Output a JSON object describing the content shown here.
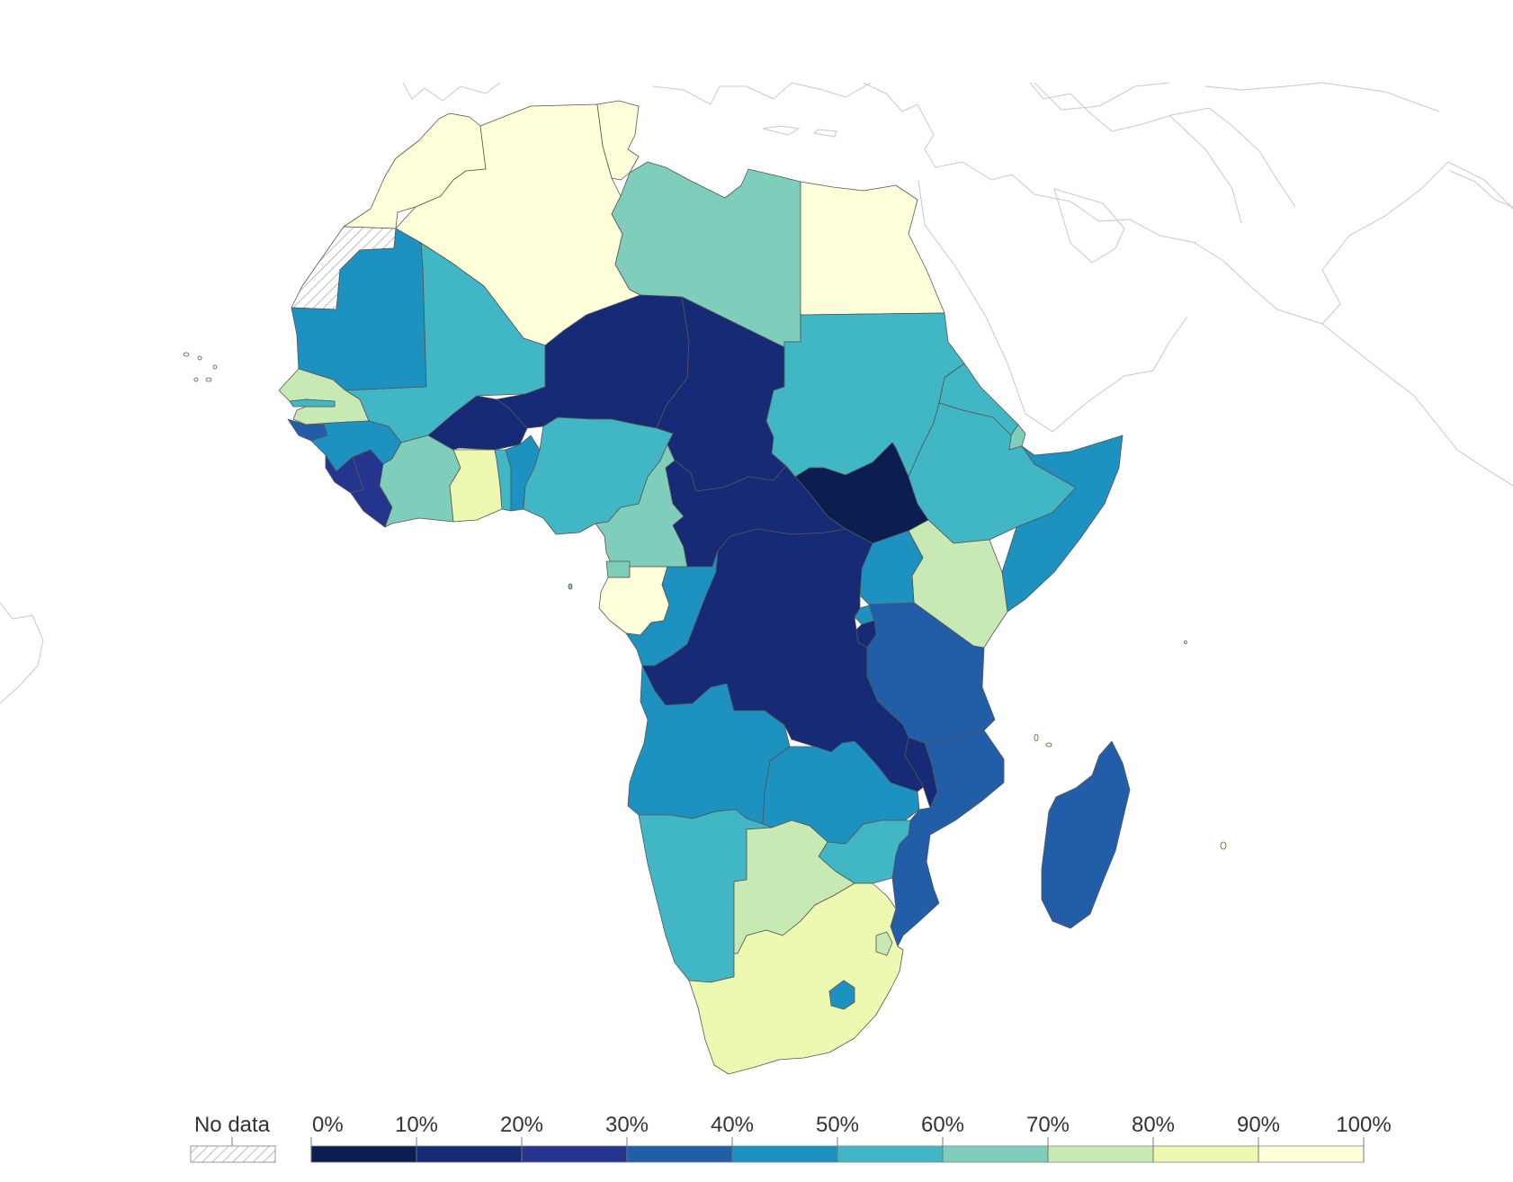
{
  "legend": {
    "no_data_label": "No data",
    "ticks": [
      "0%",
      "10%",
      "20%",
      "30%",
      "40%",
      "50%",
      "60%",
      "70%",
      "80%",
      "90%",
      "100%"
    ],
    "bins": [
      {
        "range": "0-10%",
        "color": "#0b1d51"
      },
      {
        "range": "10-20%",
        "color": "#172a75"
      },
      {
        "range": "20-30%",
        "color": "#25358f"
      },
      {
        "range": "30-40%",
        "color": "#225ea8"
      },
      {
        "range": "40-50%",
        "color": "#1d91c0"
      },
      {
        "range": "50-60%",
        "color": "#41b6c4"
      },
      {
        "range": "60-70%",
        "color": "#7fcdbb"
      },
      {
        "range": "70-80%",
        "color": "#c7e9b4"
      },
      {
        "range": "80-90%",
        "color": "#edf8b1"
      },
      {
        "range": "90-100%",
        "color": "#ffffd9"
      }
    ]
  },
  "regions": [
    {
      "name": "Morocco",
      "bin": 9
    },
    {
      "name": "Algeria",
      "bin": 9
    },
    {
      "name": "Tunisia",
      "bin": 9
    },
    {
      "name": "Libya",
      "bin": 6
    },
    {
      "name": "Egypt",
      "bin": 9
    },
    {
      "name": "Western Sahara",
      "bin": "no-data"
    },
    {
      "name": "Mauritania",
      "bin": 4
    },
    {
      "name": "Mali",
      "bin": 5
    },
    {
      "name": "Niger",
      "bin": 1
    },
    {
      "name": "Chad",
      "bin": 1
    },
    {
      "name": "Sudan",
      "bin": 5
    },
    {
      "name": "Senegal",
      "bin": 7
    },
    {
      "name": "Gambia",
      "bin": 5
    },
    {
      "name": "Guinea-Bissau",
      "bin": 3
    },
    {
      "name": "Guinea",
      "bin": 4
    },
    {
      "name": "Sierra Leone",
      "bin": 2
    },
    {
      "name": "Liberia",
      "bin": 2
    },
    {
      "name": "Ivory Coast",
      "bin": 6
    },
    {
      "name": "Burkina Faso",
      "bin": 1
    },
    {
      "name": "Ghana",
      "bin": 8
    },
    {
      "name": "Togo",
      "bin": 5
    },
    {
      "name": "Benin",
      "bin": 4
    },
    {
      "name": "Nigeria",
      "bin": 5
    },
    {
      "name": "Cameroon",
      "bin": 6
    },
    {
      "name": "Central African Republic",
      "bin": 1
    },
    {
      "name": "South Sudan",
      "bin": 0
    },
    {
      "name": "Eritrea",
      "bin": 5
    },
    {
      "name": "Djibouti",
      "bin": 6
    },
    {
      "name": "Ethiopia",
      "bin": 5
    },
    {
      "name": "Somalia",
      "bin": 4
    },
    {
      "name": "Kenya",
      "bin": 7
    },
    {
      "name": "Uganda",
      "bin": 4
    },
    {
      "name": "Rwanda",
      "bin": 4
    },
    {
      "name": "Burundi",
      "bin": 1
    },
    {
      "name": "Tanzania",
      "bin": 3
    },
    {
      "name": "Equatorial Guinea",
      "bin": 6
    },
    {
      "name": "Gabon",
      "bin": 9
    },
    {
      "name": "Republic of the Congo",
      "bin": 4
    },
    {
      "name": "DR Congo",
      "bin": 1
    },
    {
      "name": "Angola",
      "bin": 4
    },
    {
      "name": "Zambia",
      "bin": 4
    },
    {
      "name": "Malawi",
      "bin": 1
    },
    {
      "name": "Mozambique",
      "bin": 3
    },
    {
      "name": "Zimbabwe",
      "bin": 5
    },
    {
      "name": "Namibia",
      "bin": 5
    },
    {
      "name": "Botswana",
      "bin": 7
    },
    {
      "name": "South Africa",
      "bin": 8
    },
    {
      "name": "Eswatini",
      "bin": 7
    },
    {
      "name": "Lesotho",
      "bin": 4
    },
    {
      "name": "Madagascar",
      "bin": 3
    }
  ]
}
